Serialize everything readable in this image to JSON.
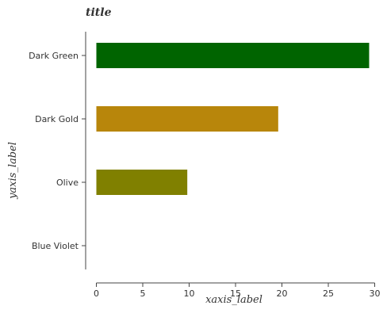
{
  "chart_data": {
    "type": "bar",
    "orientation": "horizontal",
    "title": "title",
    "xlabel": "xaxis_label",
    "ylabel": "yaxis_label",
    "categories": [
      "Blue Violet",
      "Olive",
      "Dark Gold",
      "Dark Green"
    ],
    "values": [
      0,
      9.8,
      19.6,
      29.4
    ],
    "colors": [
      "#8a2be2",
      "#808000",
      "#b8860b",
      "#006400"
    ],
    "xlim": [
      0,
      30
    ],
    "xticks": [
      0,
      5,
      10,
      15,
      20,
      25,
      30
    ],
    "xtick_labels": [
      "0",
      "5",
      "10",
      "15",
      "20",
      "25",
      "30"
    ],
    "grid": false,
    "legend": "none"
  }
}
